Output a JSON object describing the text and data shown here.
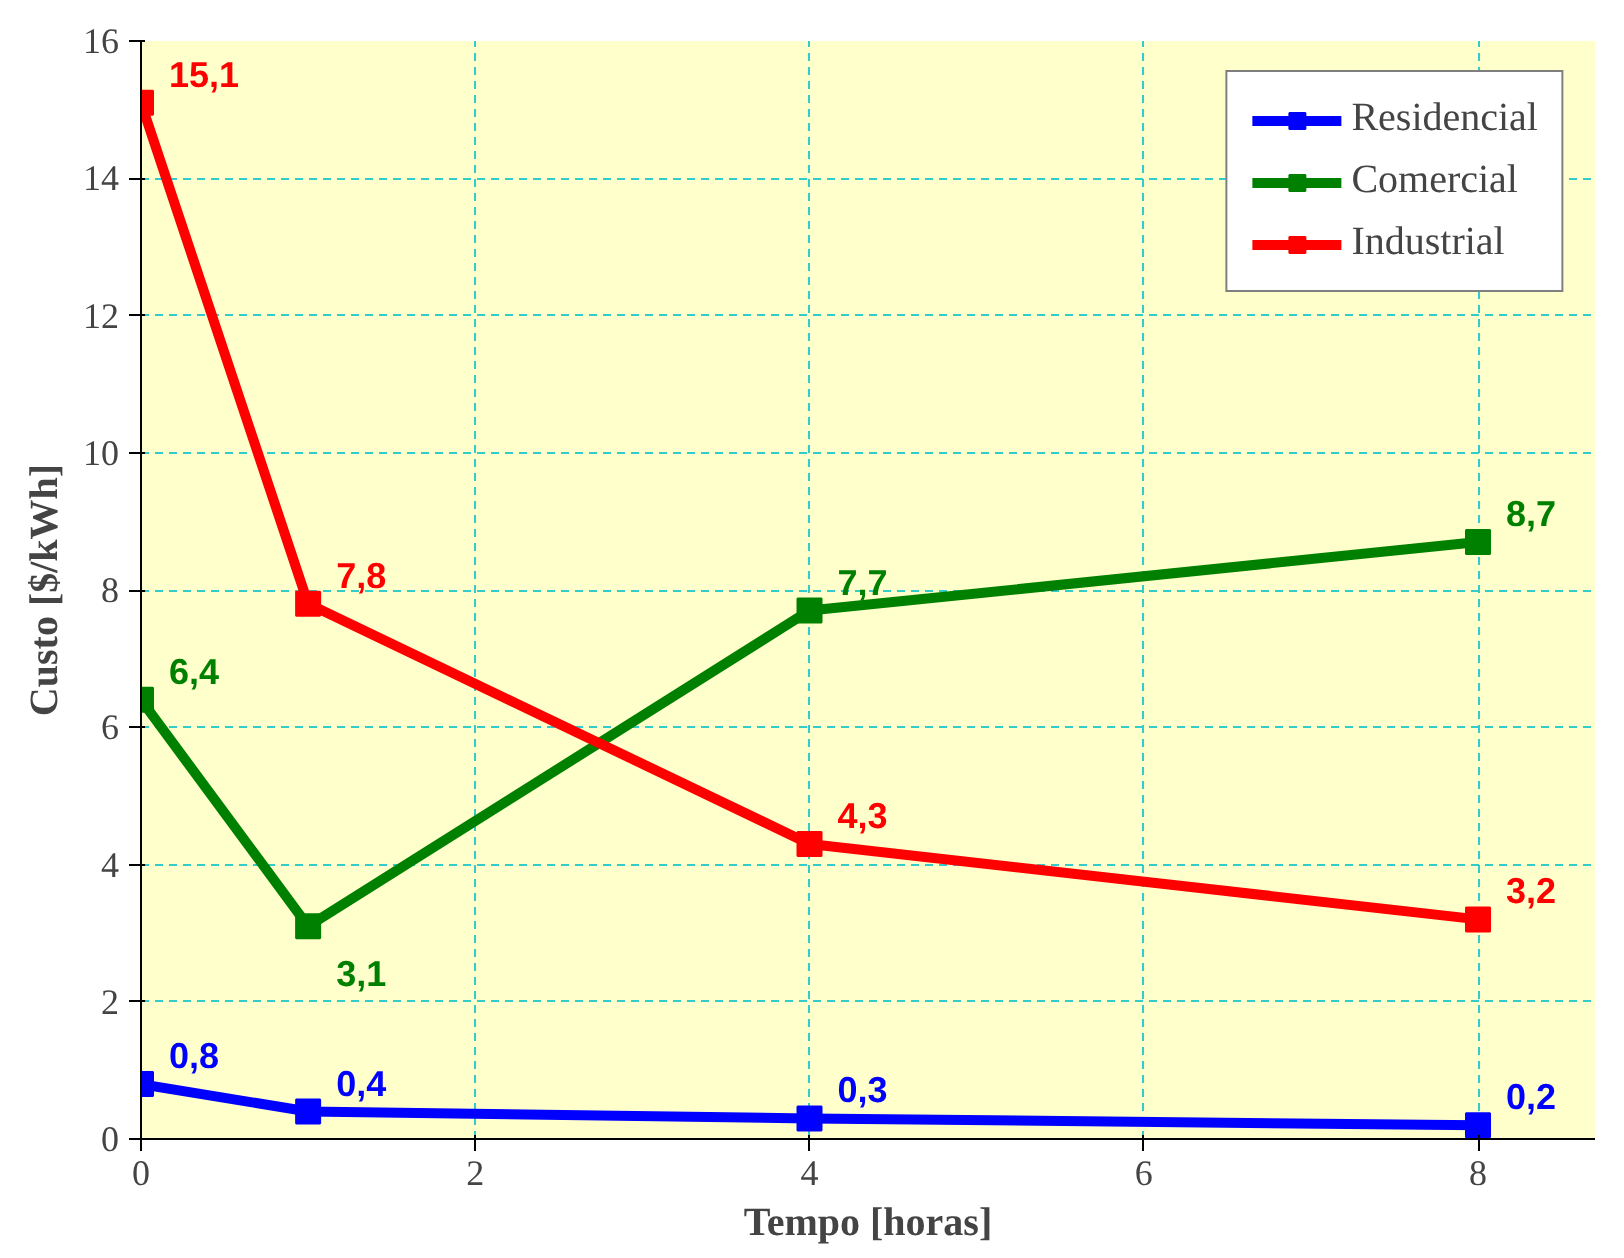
{
  "chart_data": {
    "type": "line",
    "xlabel": "Tempo [horas]",
    "ylabel": "Custo [$/kWh]",
    "x": [
      0,
      1,
      4,
      8
    ],
    "series": [
      {
        "name": "Residencial",
        "color": "#0000ff",
        "values": [
          0.8,
          0.4,
          0.3,
          0.2
        ],
        "value_labels": [
          "0,8",
          "0,4",
          "0,3",
          "0,2"
        ]
      },
      {
        "name": "Comercial",
        "color": "#008000",
        "values": [
          6.4,
          3.1,
          7.7,
          8.7
        ],
        "value_labels": [
          "6,4",
          "3,1",
          "7,7",
          "8,7"
        ]
      },
      {
        "name": "Industrial",
        "color": "#ff0000",
        "values": [
          15.1,
          7.8,
          4.3,
          3.2
        ],
        "value_labels": [
          "15,1",
          "7,8",
          "4,3",
          "3,2"
        ]
      }
    ],
    "xlim": [
      0,
      8.7
    ],
    "ylim": [
      0,
      16
    ],
    "xticks": [
      0,
      2,
      4,
      6,
      8
    ],
    "yticks": [
      0,
      2,
      4,
      6,
      8,
      10,
      12,
      14,
      16
    ],
    "grid": true,
    "legend": "top right",
    "marker": "square",
    "line_style": "solid"
  }
}
